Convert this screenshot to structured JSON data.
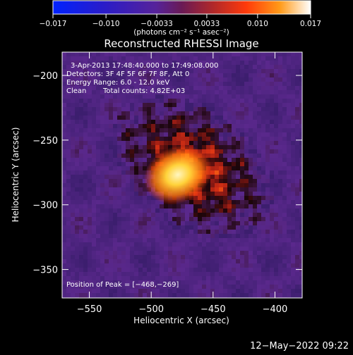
{
  "colorbar": {
    "tick_labels": [
      "−0.017",
      "−0.010",
      "−0.0033",
      "0.0033",
      "0.010",
      "0.017"
    ],
    "tick_values": [
      -0.017,
      -0.01,
      -0.0033,
      0.0033,
      0.01,
      0.017
    ],
    "range": [
      -0.017,
      0.017
    ],
    "unit_label": "(photons cm⁻² s⁻¹ asec⁻²)"
  },
  "chart_data": {
    "type": "heatmap",
    "title": "Reconstructed RHESSI Image",
    "xlabel": "Heliocentric X (arcsec)",
    "ylabel": "Heliocentric Y (arcsec)",
    "xlim": [
      -572,
      -378
    ],
    "ylim": [
      -372,
      -182
    ],
    "x_ticks": [
      -550,
      -500,
      -450,
      -400
    ],
    "y_ticks": [
      -200,
      -250,
      -300,
      -350
    ],
    "x_tick_labels": [
      "−550",
      "−500",
      "−450",
      "−400"
    ],
    "y_tick_labels": [
      "−200",
      "−250",
      "−300",
      "−350"
    ],
    "peak": {
      "x": -468,
      "y": -269
    },
    "annotations": {
      "time_range": "3-Apr-2013 17:48:40.000 to 17:49:08.000",
      "detectors": "Detectors: 3F 4F 5F 6F 7F 8F, Att 0",
      "energy_range": "Energy Range: 6.0 - 12.0 keV",
      "clean": "Clean",
      "total_counts": "Total counts: 4.82E+03",
      "peak_position": "Position of Peak = [−468,−269]"
    }
  },
  "footer": {
    "date": "12−May−2022 09:22"
  }
}
